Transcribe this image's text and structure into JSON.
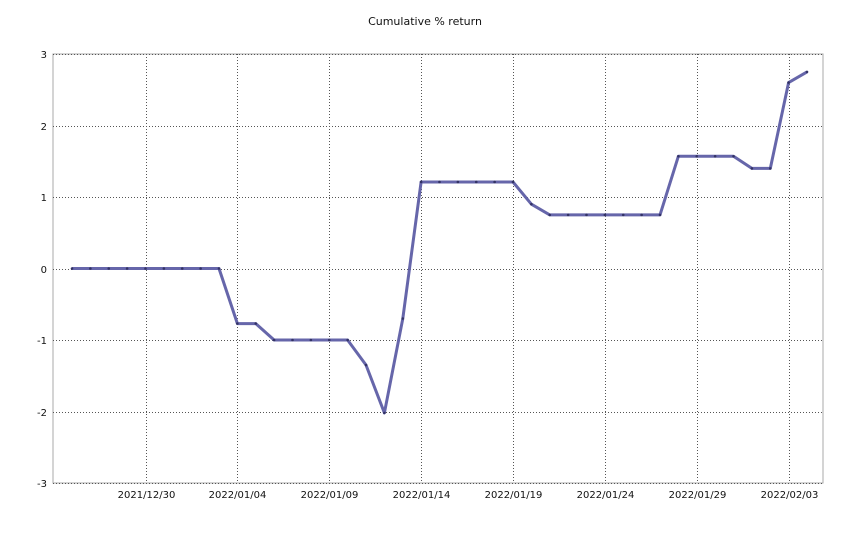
{
  "chart_data": {
    "type": "line",
    "title": "Cumulative % return",
    "xlabel": "",
    "ylabel": "",
    "grid": true,
    "ylim": [
      -3,
      3
    ],
    "yticks": [
      "3",
      "2",
      "1",
      "0",
      "-1",
      "-2",
      "-3"
    ],
    "xticks": [
      "2021/12/30",
      "2022/01/04",
      "2022/01/09",
      "2022/01/14",
      "2022/01/19",
      "2022/01/24",
      "2022/01/29",
      "2022/02/03"
    ],
    "line_color": "#6666aa",
    "series": [
      {
        "x": [
          "2021/12/26",
          "2021/12/27",
          "2021/12/28",
          "2021/12/29",
          "2021/12/30",
          "2021/12/31",
          "2022/01/01",
          "2022/01/02",
          "2022/01/03",
          "2022/01/04",
          "2022/01/05",
          "2022/01/06",
          "2022/01/07",
          "2022/01/08",
          "2022/01/09",
          "2022/01/10",
          "2022/01/11",
          "2022/01/12",
          "2022/01/13",
          "2022/01/14",
          "2022/01/15",
          "2022/01/16",
          "2022/01/17",
          "2022/01/18",
          "2022/01/19",
          "2022/01/20",
          "2022/01/21",
          "2022/01/22",
          "2022/01/23",
          "2022/01/24",
          "2022/01/25",
          "2022/01/26",
          "2022/01/27",
          "2022/01/28",
          "2022/01/29",
          "2022/01/30",
          "2022/01/31",
          "2022/02/01",
          "2022/02/02",
          "2022/02/03",
          "2022/02/04"
        ],
        "values": [
          0,
          0,
          0,
          0,
          0,
          0,
          0,
          0,
          0,
          -0.77,
          -0.77,
          -1.0,
          -1.0,
          -1.0,
          -1.0,
          -1.0,
          -1.35,
          -2.02,
          -0.7,
          1.21,
          1.21,
          1.21,
          1.21,
          1.21,
          1.21,
          0.9,
          0.75,
          0.75,
          0.75,
          0.75,
          0.75,
          0.75,
          0.75,
          1.57,
          1.57,
          1.57,
          1.57,
          1.4,
          1.4,
          2.6,
          2.75
        ]
      }
    ]
  }
}
